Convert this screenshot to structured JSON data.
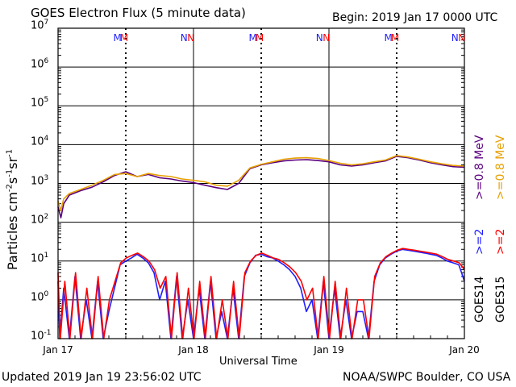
{
  "header": {
    "title": "GOES Electron Flux (5 minute data)",
    "begin": "Begin: 2019 Jan 17 0000 UTC"
  },
  "footer": {
    "updated": "Updated 2019 Jan 19 23:56:02 UTC",
    "credit": "NOAA/SWPC Boulder, CO USA"
  },
  "colors": {
    "g14_08": "#5a007f",
    "g15_08": "#e8a000",
    "g14_2": "#1f1fff",
    "g15_2": "#ff0000",
    "threshold": "#000000"
  },
  "legend": {
    "g14_label": "GOES14",
    "g15_label": "GOES15",
    "g14_08": ">=0.8  MeV",
    "g15_08": ">=0.8  MeV",
    "g14_2": ">=2",
    "g15_2": ">=2"
  },
  "chart_data": {
    "type": "line",
    "title": "GOES Electron Flux (5 minute data)",
    "xlabel": "Universal Time",
    "ylabel": "Particles cm-2 s-1 sr-1",
    "yscale": "log",
    "ylim": [
      0.1,
      10000000
    ],
    "xlim": [
      0,
      72
    ],
    "x_unit": "hours since 2019 Jan 17 0000 UTC",
    "x_ticks": [
      {
        "x": 0,
        "label": "Jan 17"
      },
      {
        "x": 24,
        "label": "Jan 18"
      },
      {
        "x": 48,
        "label": "Jan 19"
      },
      {
        "x": 72,
        "label": "Jan 20"
      }
    ],
    "y_ticks": [
      {
        "base": "10",
        "exp": "-1",
        "value": 0.1
      },
      {
        "base": "10",
        "exp": "0",
        "value": 1
      },
      {
        "base": "10",
        "exp": "1",
        "value": 10
      },
      {
        "base": "10",
        "exp": "2",
        "value": 100
      },
      {
        "base": "10",
        "exp": "3",
        "value": 1000
      },
      {
        "base": "10",
        "exp": "4",
        "value": 10000
      },
      {
        "base": "10",
        "exp": "5",
        "value": 100000
      },
      {
        "base": "10",
        "exp": "6",
        "value": 1000000
      },
      {
        "base": "10",
        "exp": "7",
        "value": 10000000
      }
    ],
    "threshold": 1000,
    "grid": true,
    "noon_markers_x": [
      12,
      36,
      60
    ],
    "top_markers": [
      {
        "x": 10.5,
        "label": "M",
        "series": "GOES14"
      },
      {
        "x": 11.7,
        "label": "M",
        "series": "GOES15"
      },
      {
        "x": 22.4,
        "label": "N",
        "series": "GOES14"
      },
      {
        "x": 23.6,
        "label": "N",
        "series": "GOES15"
      },
      {
        "x": 34.5,
        "label": "M",
        "series": "GOES14"
      },
      {
        "x": 35.7,
        "label": "M",
        "series": "GOES15"
      },
      {
        "x": 46.4,
        "label": "N",
        "series": "GOES14"
      },
      {
        "x": 47.6,
        "label": "N",
        "series": "GOES15"
      },
      {
        "x": 58.5,
        "label": "M",
        "series": "GOES14"
      },
      {
        "x": 59.7,
        "label": "M",
        "series": "GOES15"
      },
      {
        "x": 70.4,
        "label": "N",
        "series": "GOES14"
      },
      {
        "x": 71.6,
        "label": "N",
        "series": "GOES15"
      }
    ],
    "series": [
      {
        "name": "GOES14 >=0.8 MeV",
        "color": "#5a007f",
        "x": [
          0,
          0.5,
          1,
          2,
          4,
          6,
          8,
          10,
          12,
          14,
          16,
          18,
          20,
          22,
          24,
          26,
          28,
          30,
          32,
          34,
          36,
          38,
          40,
          42,
          44,
          46,
          48,
          50,
          52,
          54,
          56,
          58,
          60,
          62,
          64,
          66,
          68,
          70,
          72
        ],
        "y": [
          250,
          130,
          300,
          500,
          650,
          800,
          1100,
          1600,
          2000,
          1500,
          1700,
          1400,
          1300,
          1150,
          1050,
          900,
          780,
          700,
          1000,
          2400,
          3000,
          3400,
          3800,
          4000,
          4100,
          3900,
          3600,
          3000,
          2800,
          3000,
          3400,
          3800,
          5000,
          4600,
          4000,
          3400,
          3000,
          2700,
          2600
        ]
      },
      {
        "name": "GOES15 >=0.8 MeV",
        "color": "#e8a000",
        "x": [
          0,
          0.5,
          1,
          2,
          4,
          6,
          8,
          10,
          12,
          14,
          16,
          18,
          20,
          22,
          24,
          26,
          28,
          30,
          32,
          34,
          36,
          38,
          40,
          42,
          44,
          46,
          48,
          50,
          52,
          54,
          56,
          58,
          60,
          62,
          64,
          66,
          68,
          70,
          72
        ],
        "y": [
          350,
          200,
          400,
          550,
          700,
          900,
          1200,
          1700,
          1800,
          1500,
          1800,
          1600,
          1500,
          1300,
          1200,
          1100,
          900,
          850,
          1200,
          2500,
          3100,
          3600,
          4200,
          4500,
          4600,
          4400,
          3900,
          3300,
          3000,
          3200,
          3600,
          4000,
          5200,
          4800,
          4200,
          3600,
          3200,
          2900,
          2800
        ]
      },
      {
        "name": "GOES14 >=2 MeV",
        "color": "#1f1fff",
        "x": [
          0,
          0.3,
          1,
          2,
          3,
          4,
          5,
          6,
          7,
          8,
          9,
          10,
          11,
          12,
          13,
          14,
          15,
          16,
          17,
          18,
          19,
          20,
          21,
          22,
          23,
          24,
          25,
          26,
          27,
          28,
          29,
          30,
          31,
          32,
          33,
          34,
          35,
          36,
          37,
          38,
          39,
          40,
          41,
          42,
          43,
          44,
          45,
          46,
          47,
          48,
          49,
          50,
          51,
          52,
          53,
          54,
          55,
          56,
          57,
          58,
          59,
          60,
          61,
          62,
          63,
          64,
          65,
          66,
          67,
          68,
          69,
          70,
          71,
          71.5,
          72
        ],
        "y": [
          3,
          0.1,
          2,
          0.1,
          4,
          0.1,
          1,
          0.1,
          3,
          0.1,
          0.5,
          2,
          8,
          10,
          12,
          15,
          12,
          9,
          5,
          1,
          3,
          0.1,
          4,
          0.1,
          1,
          0.1,
          2,
          0.1,
          3,
          0.1,
          0.5,
          0.1,
          2,
          0.1,
          4,
          9,
          14,
          15,
          13,
          12,
          10,
          8,
          6,
          4,
          2,
          0.5,
          1,
          0.1,
          3,
          0.1,
          2,
          0.1,
          1,
          0.1,
          0.5,
          0.5,
          0.1,
          3,
          8,
          12,
          15,
          18,
          20,
          19,
          18,
          17,
          16,
          15,
          14,
          12,
          10,
          9,
          8,
          5,
          3
        ]
      },
      {
        "name": "GOES15 >=2 MeV",
        "color": "#ff0000",
        "x": [
          0,
          0.4,
          1.2,
          2.1,
          3.1,
          4.1,
          5.1,
          6.1,
          7.1,
          8.1,
          9.1,
          10.1,
          11.1,
          12.1,
          13.1,
          14.1,
          15.1,
          16.1,
          17.1,
          18.1,
          19.1,
          20.1,
          21.1,
          22.1,
          23.1,
          24.1,
          25.1,
          26.1,
          27.1,
          28.1,
          29.1,
          30.1,
          31.1,
          32.1,
          33.1,
          34.1,
          35.1,
          36.1,
          37.1,
          38.1,
          39.1,
          40.1,
          41.1,
          42.1,
          43.1,
          44.1,
          45.1,
          46.1,
          47.1,
          48.1,
          49.1,
          50.1,
          51.1,
          52.1,
          53.1,
          54.1,
          55.1,
          56.1,
          57.1,
          58.1,
          59.1,
          60.1,
          61.1,
          62.1,
          63.1,
          64.1,
          65.1,
          66.1,
          67.1,
          68.1,
          69.1,
          70.1,
          71.1,
          72
        ],
        "y": [
          5,
          0.1,
          3,
          0.1,
          5,
          0.1,
          2,
          0.1,
          4,
          0.1,
          1,
          3,
          9,
          12,
          14,
          16,
          13,
          10,
          6,
          2,
          4,
          0.1,
          5,
          0.1,
          2,
          0.1,
          3,
          0.1,
          4,
          0.1,
          1,
          0.1,
          3,
          0.1,
          5,
          10,
          14,
          16,
          14,
          12,
          11,
          9,
          7,
          5,
          3,
          1,
          2,
          0.1,
          4,
          0.1,
          3,
          0.1,
          2,
          0.1,
          1,
          1,
          0.1,
          4,
          9,
          13,
          16,
          19,
          21,
          20,
          19,
          18,
          17,
          16,
          15,
          13,
          11,
          10,
          9,
          6
        ]
      }
    ]
  }
}
